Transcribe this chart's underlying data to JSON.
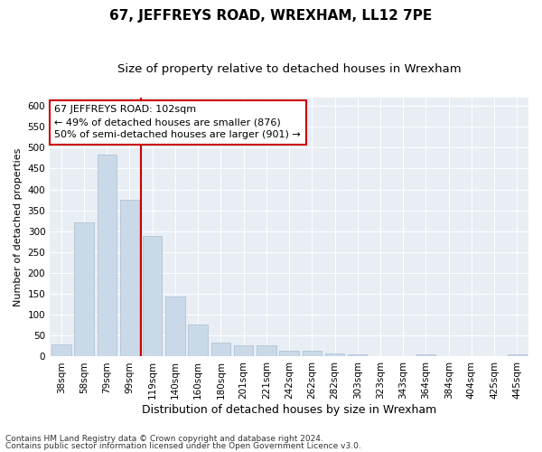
{
  "title": "67, JEFFREYS ROAD, WREXHAM, LL12 7PE",
  "subtitle": "Size of property relative to detached houses in Wrexham",
  "xlabel": "Distribution of detached houses by size in Wrexham",
  "ylabel": "Number of detached properties",
  "categories": [
    "38sqm",
    "58sqm",
    "79sqm",
    "99sqm",
    "119sqm",
    "140sqm",
    "160sqm",
    "180sqm",
    "201sqm",
    "221sqm",
    "242sqm",
    "262sqm",
    "282sqm",
    "303sqm",
    "323sqm",
    "343sqm",
    "364sqm",
    "384sqm",
    "404sqm",
    "425sqm",
    "445sqm"
  ],
  "values": [
    30,
    320,
    483,
    375,
    288,
    143,
    77,
    33,
    28,
    27,
    15,
    14,
    7,
    5,
    2,
    2,
    5,
    2,
    1,
    1,
    5
  ],
  "bar_color": "#c9d9e8",
  "bar_edgecolor": "#aabcce",
  "annotation_title": "67 JEFFREYS ROAD: 102sqm",
  "annotation_line1": "← 49% of detached houses are smaller (876)",
  "annotation_line2": "50% of semi-detached houses are larger (901) →",
  "annotation_box_facecolor": "#ffffff",
  "annotation_box_edgecolor": "#cc0000",
  "redline_color": "#cc0000",
  "footer1": "Contains HM Land Registry data © Crown copyright and database right 2024.",
  "footer2": "Contains public sector information licensed under the Open Government Licence v3.0.",
  "ylim": [
    0,
    620
  ],
  "yticks": [
    0,
    50,
    100,
    150,
    200,
    250,
    300,
    350,
    400,
    450,
    500,
    550,
    600
  ],
  "title_fontsize": 11,
  "subtitle_fontsize": 9.5,
  "xlabel_fontsize": 9,
  "ylabel_fontsize": 8,
  "tick_fontsize": 7.5,
  "annotation_fontsize": 8,
  "footer_fontsize": 6.5,
  "background_color": "#e8eef4",
  "redline_xindex": 3.5
}
